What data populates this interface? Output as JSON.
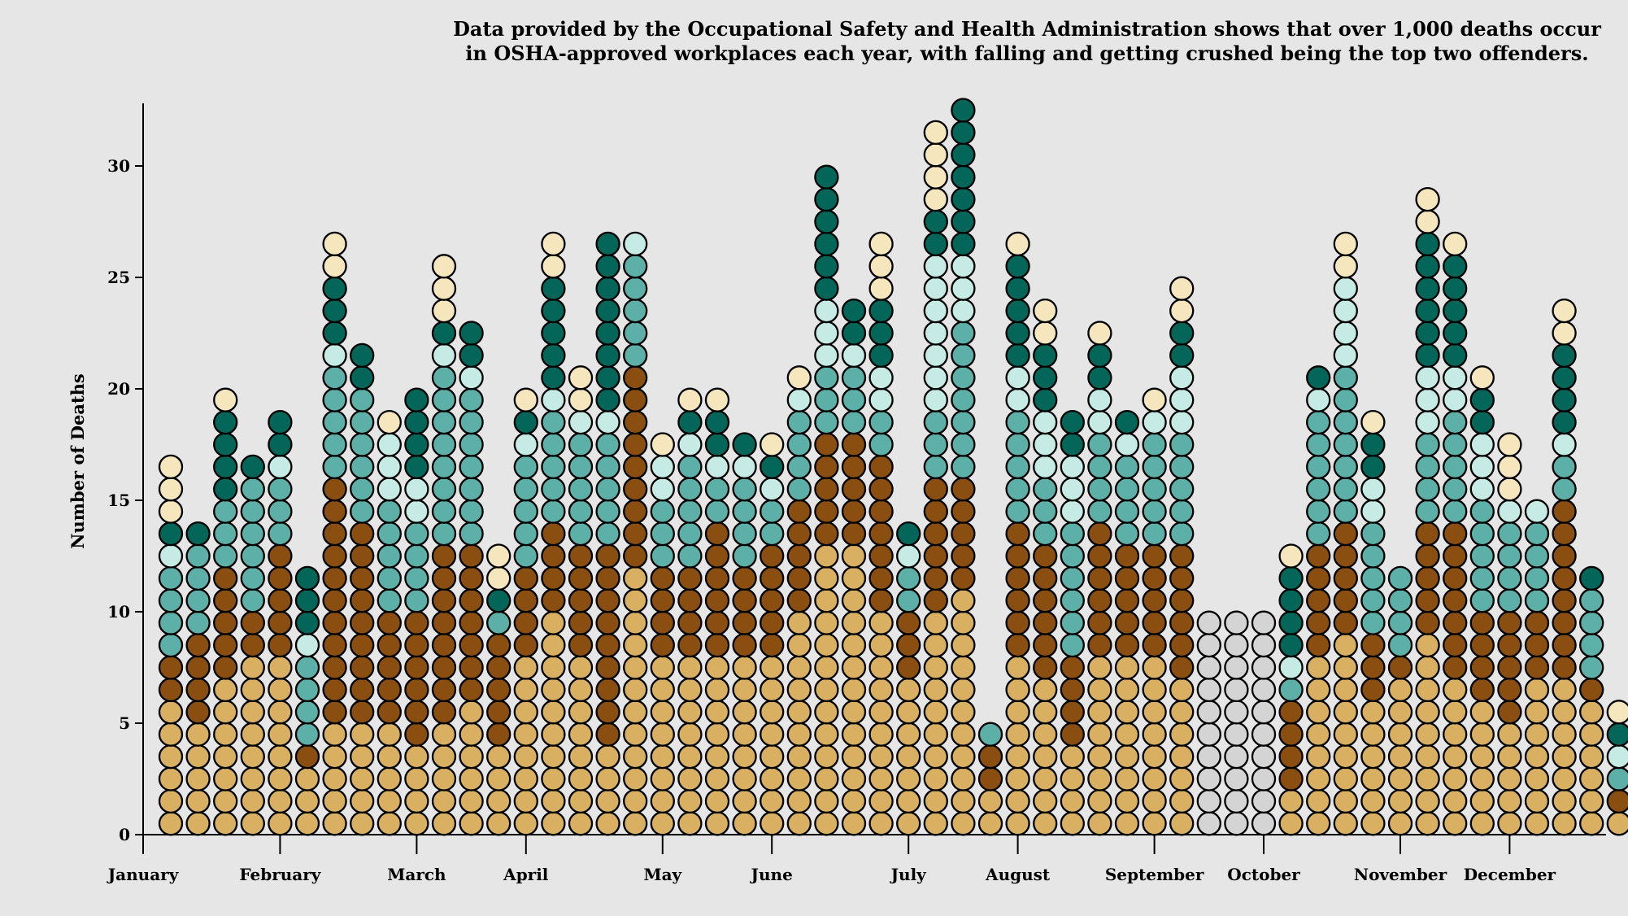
{
  "chart_data": {
    "type": "stacked-dot-histogram",
    "title_lines": [
      "Data provided by the Occupational Safety and Health Administration shows that over 1,000 deaths occur",
      "in OSHA-approved workplaces each year, with falling and getting crushed being the top two offenders."
    ],
    "ylabel": "Number of Deaths",
    "xlabel": "",
    "ylim": [
      0,
      33
    ],
    "yticks": [
      0,
      5,
      10,
      15,
      20,
      25,
      30
    ],
    "month_labels": [
      "January",
      "February",
      "March",
      "April",
      "May",
      "June",
      "July",
      "August",
      "September",
      "October",
      "November",
      "December"
    ],
    "palette": {
      "A": "#d9af62",
      "B": "#8a4e10",
      "C": "#5cb0a8",
      "D": "#c5ebe4",
      "E": "#046658",
      "F": "#f6e6bd",
      "G": "#d4d4d4"
    },
    "grid": false,
    "legend": "none",
    "weeks": [
      {
        "counts": {
          "A": 6,
          "B": 2,
          "C": 4,
          "D": 1,
          "E": 1,
          "F": 3
        }
      },
      {
        "counts": {
          "A": 5,
          "B": 4,
          "C": 4,
          "E": 1
        }
      },
      {
        "counts": {
          "A": 7,
          "B": 5,
          "C": 3,
          "E": 4,
          "F": 1
        }
      },
      {
        "counts": {
          "A": 8,
          "B": 2,
          "C": 6,
          "E": 1
        }
      },
      {
        "counts": {
          "A": 8,
          "B": 5,
          "C": 3,
          "D": 1,
          "E": 2
        }
      },
      {
        "counts": {
          "A": 3,
          "B": 1,
          "C": 4,
          "D": 1,
          "E": 3
        }
      },
      {
        "counts": {
          "A": 5,
          "B": 11,
          "C": 5,
          "D": 1,
          "E": 3,
          "F": 2
        }
      },
      {
        "counts": {
          "A": 5,
          "B": 9,
          "C": 6,
          "E": 2
        }
      },
      {
        "counts": {
          "A": 5,
          "B": 5,
          "C": 5,
          "D": 3,
          "F": 1
        }
      },
      {
        "counts": {
          "A": 4,
          "B": 6,
          "C": 4,
          "D": 2,
          "E": 4
        }
      },
      {
        "counts": {
          "A": 5,
          "B": 8,
          "C": 8,
          "D": 1,
          "E": 1,
          "F": 3
        }
      },
      {
        "counts": {
          "A": 6,
          "B": 7,
          "C": 7,
          "D": 1,
          "E": 2
        }
      },
      {
        "counts": {
          "A": 4,
          "B": 5,
          "C": 1,
          "E": 1,
          "F": 2
        }
      },
      {
        "counts": {
          "A": 8,
          "B": 4,
          "C": 5,
          "D": 1,
          "E": 1,
          "F": 1
        }
      },
      {
        "counts": {
          "A": 10,
          "B": 4,
          "C": 5,
          "D": 1,
          "E": 5,
          "F": 2
        }
      },
      {
        "counts": {
          "A": 8,
          "B": 5,
          "C": 5,
          "D": 1,
          "F": 2
        }
      },
      {
        "counts": {
          "A": 4,
          "B": 9,
          "C": 5,
          "D": 1,
          "E": 8
        }
      },
      {
        "counts": {
          "A": 12,
          "B": 9,
          "C": 5,
          "D": 1
        }
      },
      {
        "counts": {
          "A": 8,
          "B": 4,
          "C": 3,
          "D": 2,
          "F": 1
        }
      },
      {
        "counts": {
          "A": 8,
          "B": 4,
          "C": 5,
          "D": 1,
          "E": 1,
          "F": 1
        }
      },
      {
        "counts": {
          "A": 8,
          "B": 6,
          "C": 2,
          "D": 1,
          "E": 2,
          "F": 1
        }
      },
      {
        "counts": {
          "A": 8,
          "B": 4,
          "C": 4,
          "D": 1,
          "E": 1
        }
      },
      {
        "counts": {
          "A": 8,
          "B": 5,
          "C": 2,
          "D": 1,
          "E": 1,
          "F": 1
        }
      },
      {
        "counts": {
          "A": 10,
          "B": 5,
          "C": 4,
          "D": 1,
          "F": 1
        }
      },
      {
        "counts": {
          "A": 13,
          "B": 5,
          "C": 3,
          "D": 3,
          "E": 6
        }
      },
      {
        "counts": {
          "A": 13,
          "B": 5,
          "C": 3,
          "D": 1,
          "E": 2
        }
      },
      {
        "counts": {
          "A": 10,
          "B": 7,
          "C": 2,
          "D": 2,
          "E": 3,
          "F": 3
        }
      },
      {
        "counts": {
          "A": 7,
          "B": 3,
          "C": 2,
          "D": 1,
          "E": 1
        }
      },
      {
        "counts": {
          "A": 10,
          "B": 6,
          "C": 3,
          "D": 7,
          "E": 2,
          "F": 4
        }
      },
      {
        "counts": {
          "A": 11,
          "B": 5,
          "C": 7,
          "D": 3,
          "E": 7
        }
      },
      {
        "counts": {
          "A": 2,
          "B": 2,
          "C": 1
        }
      },
      {
        "counts": {
          "A": 8,
          "B": 6,
          "C": 5,
          "D": 2,
          "E": 5,
          "F": 1
        }
      },
      {
        "counts": {
          "A": 7,
          "B": 6,
          "C": 3,
          "D": 3,
          "E": 3,
          "F": 2
        }
      },
      {
        "counts": {
          "A": 4,
          "B": 4,
          "C": 6,
          "D": 3,
          "E": 2
        }
      },
      {
        "counts": {
          "A": 8,
          "B": 6,
          "C": 4,
          "D": 2,
          "E": 2,
          "F": 1
        }
      },
      {
        "counts": {
          "A": 8,
          "B": 5,
          "C": 4,
          "D": 1,
          "E": 1
        }
      },
      {
        "counts": {
          "A": 8,
          "B": 5,
          "C": 5,
          "D": 1,
          "F": 1
        }
      },
      {
        "counts": {
          "A": 7,
          "B": 6,
          "C": 5,
          "D": 3,
          "E": 2,
          "F": 2
        }
      },
      {
        "counts": {
          "G": 10
        }
      },
      {
        "counts": {
          "G": 10
        }
      },
      {
        "counts": {
          "G": 10
        }
      },
      {
        "counts": {
          "A": 2,
          "B": 4,
          "C": 1,
          "D": 1,
          "E": 4,
          "F": 1
        }
      },
      {
        "counts": {
          "A": 8,
          "B": 5,
          "C": 6,
          "D": 1,
          "E": 1
        }
      },
      {
        "counts": {
          "A": 9,
          "B": 5,
          "C": 7,
          "D": 4,
          "F": 2
        }
      },
      {
        "counts": {
          "A": 6,
          "B": 3,
          "C": 5,
          "D": 2,
          "E": 2,
          "F": 1
        }
      },
      {
        "counts": {
          "A": 7,
          "B": 1,
          "C": 4
        }
      },
      {
        "counts": {
          "A": 9,
          "B": 5,
          "C": 4,
          "D": 3,
          "E": 6,
          "F": 2
        }
      },
      {
        "counts": {
          "A": 7,
          "B": 7,
          "C": 5,
          "D": 2,
          "E": 5,
          "F": 1
        }
      },
      {
        "counts": {
          "A": 6,
          "B": 4,
          "C": 5,
          "D": 3,
          "E": 2,
          "F": 1
        }
      },
      {
        "counts": {
          "A": 5,
          "B": 5,
          "C": 4,
          "D": 1,
          "F": 3
        }
      },
      {
        "counts": {
          "A": 7,
          "B": 3,
          "C": 4,
          "D": 1
        }
      },
      {
        "counts": {
          "A": 7,
          "B": 8,
          "C": 2,
          "D": 1,
          "E": 4,
          "F": 2
        }
      },
      {
        "counts": {
          "A": 6,
          "B": 1,
          "C": 4,
          "E": 1
        }
      },
      {
        "counts": {
          "A": 1,
          "B": 1,
          "C": 1,
          "D": 1,
          "E": 1,
          "F": 1
        }
      }
    ],
    "month_label_after_week": [
      0,
      4,
      9,
      13,
      18,
      22,
      27,
      31,
      36,
      40,
      45,
      49
    ]
  }
}
